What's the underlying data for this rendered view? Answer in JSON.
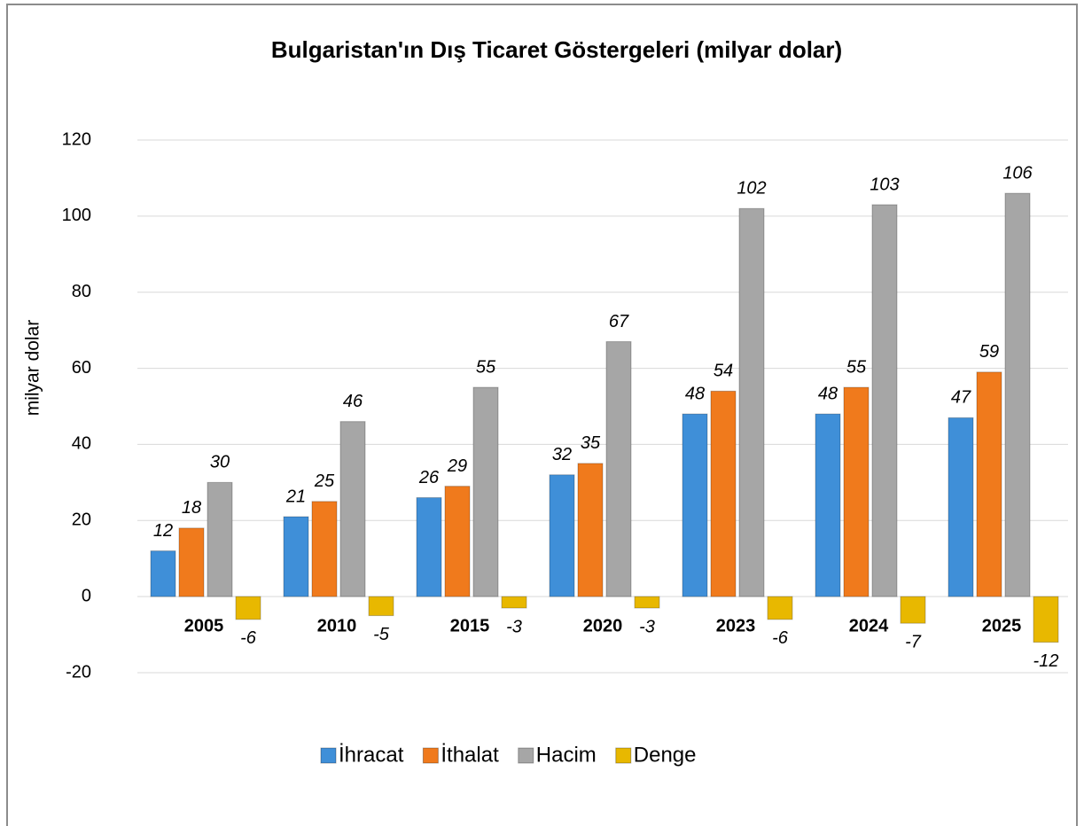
{
  "chart_data": {
    "type": "bar",
    "title": "Bulgaristan'ın Dış Ticaret Göstergeleri (milyar dolar)",
    "y_label": "milyar dolar",
    "categories": [
      "2005",
      "2010",
      "2015",
      "2020",
      "2023",
      "2024",
      "2025"
    ],
    "series": [
      {
        "name": "İhracat",
        "color": "#3f8fd8",
        "values": [
          12,
          21,
          26,
          32,
          48,
          48,
          47
        ]
      },
      {
        "name": "İthalat",
        "color": "#f07a1c",
        "values": [
          18,
          25,
          29,
          35,
          54,
          55,
          59
        ]
      },
      {
        "name": "Hacim",
        "color": "#a6a6a6",
        "values": [
          30,
          46,
          55,
          67,
          102,
          103,
          106
        ]
      },
      {
        "name": "Denge",
        "color": "#e8b800",
        "values": [
          -6,
          -5,
          -3,
          -3,
          -6,
          -7,
          -12
        ]
      }
    ],
    "ylim": [
      -20,
      120
    ],
    "yticks": [
      -20,
      0,
      20,
      40,
      60,
      80,
      100,
      120
    ],
    "grid": true,
    "legend": "bottom"
  }
}
